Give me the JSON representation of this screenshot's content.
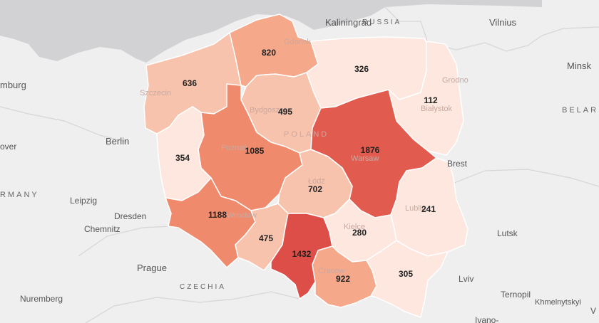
{
  "colors": {
    "land": "#efefef",
    "water": "#d2d2d4",
    "border": "#d6d6d6",
    "scale": [
      "#fde7de",
      "#f8c3ad",
      "#f5a88a",
      "#f08a6c",
      "#e25b4f",
      "#dc4e47"
    ]
  },
  "map": {
    "city_labels": {
      "kaliningrad": "Kaliningrad",
      "russia": "RUSSIA",
      "vilnius": "Vilnius",
      "minsk": "Minsk",
      "belarus": "BELAR",
      "hamburg": "mburg",
      "berlin": "Berlin",
      "hanover": "over",
      "germany": "RMANY",
      "leipzig": "Leipzig",
      "dresden": "Dresden",
      "chemnitz": "Chemnitz",
      "prague": "Prague",
      "czechia": "CZECHIA",
      "nuremberg": "Nuremberg",
      "brest": "Brest",
      "lutsk": "Lutsk",
      "lviv": "Lviv",
      "ternopil": "Ternopil",
      "khmelnytskyi": "Khmelnytskyi",
      "ivano": "Ivano-",
      "v": "V"
    },
    "underlay_labels": {
      "gdansk": "Gdańsk",
      "szczecin": "Szczecin",
      "bydgoszcz": "Bydgoszcz",
      "grodno": "Grodno",
      "bialystok": "Białystok",
      "poland": "POLAND",
      "poznan": "Poznań",
      "warsaw": "Warsaw",
      "lodz": "Łódź",
      "wroclaw": "Wrocław",
      "lublin": "Lublin",
      "kielce": "Kielce",
      "krakow": "Cracow"
    },
    "regions": [
      {
        "key": "pomorskie",
        "value": "820",
        "level": 2
      },
      {
        "key": "zachodniopomorskie",
        "value": "636",
        "level": 1
      },
      {
        "key": "warminsko_mazurskie",
        "value": "326",
        "level": 0
      },
      {
        "key": "podlaskie",
        "value": "112",
        "level": 0
      },
      {
        "key": "kujawsko_pomorskie",
        "value": "495",
        "level": 1
      },
      {
        "key": "lubuskie",
        "value": "354",
        "level": 0
      },
      {
        "key": "wielkopolskie",
        "value": "1085",
        "level": 3
      },
      {
        "key": "mazowieckie",
        "value": "1876",
        "level": 4
      },
      {
        "key": "lodzkie",
        "value": "702",
        "level": 1
      },
      {
        "key": "lubelskie",
        "value": "241",
        "level": 0
      },
      {
        "key": "dolnoslaskie",
        "value": "1188",
        "level": 3
      },
      {
        "key": "opolskie",
        "value": "475",
        "level": 1
      },
      {
        "key": "slaskie",
        "value": "1432",
        "level": 5
      },
      {
        "key": "swietokrzyskie",
        "value": "280",
        "level": 0
      },
      {
        "key": "malopolskie",
        "value": "922",
        "level": 2
      },
      {
        "key": "podkarpackie",
        "value": "305",
        "level": 0
      }
    ]
  }
}
